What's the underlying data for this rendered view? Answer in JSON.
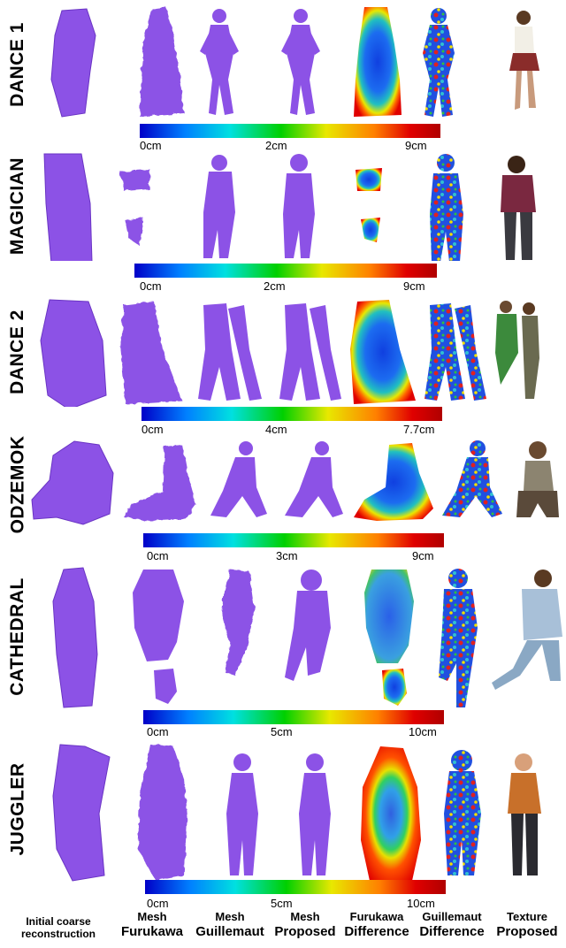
{
  "colors": {
    "mesh": "#8c52e6",
    "mesh_dark": "#6a34c4",
    "colormap": [
      "#0000c8",
      "#0080ff",
      "#00e0e0",
      "#00d000",
      "#e8e800",
      "#ff8000",
      "#e00000",
      "#b00000"
    ]
  },
  "rows": [
    {
      "label": "DANCE 1",
      "colorbar": {
        "min": "0cm",
        "mid": "2cm",
        "max": "9cm"
      }
    },
    {
      "label": "MAGICIAN",
      "colorbar": {
        "min": "0cm",
        "mid": "2cm",
        "max": "9cm"
      }
    },
    {
      "label": "DANCE 2",
      "colorbar": {
        "min": "0cm",
        "mid": "4cm",
        "max": "7.7cm"
      }
    },
    {
      "label": "ODZEMOK",
      "colorbar": {
        "min": "0cm",
        "mid": "3cm",
        "max": "9cm"
      }
    },
    {
      "label": "CATHEDRAL",
      "colorbar": {
        "min": "0cm",
        "mid": "5cm",
        "max": "10cm"
      }
    },
    {
      "label": "JUGGLER",
      "colorbar": {
        "min": "0cm",
        "mid": "5cm",
        "max": "10cm"
      }
    }
  ],
  "columns": [
    {
      "line1": "Initial coarse",
      "line2": "reconstruction"
    },
    {
      "line1": "Mesh",
      "line2": "Furukawa"
    },
    {
      "line1": "Mesh",
      "line2": "Guillemaut"
    },
    {
      "line1": "Mesh",
      "line2": "Proposed"
    },
    {
      "line1": "Furukawa",
      "line2": "Difference"
    },
    {
      "line1": "Guillemaut",
      "line2": "Difference"
    },
    {
      "line1": "Texture",
      "line2": "Proposed"
    }
  ]
}
